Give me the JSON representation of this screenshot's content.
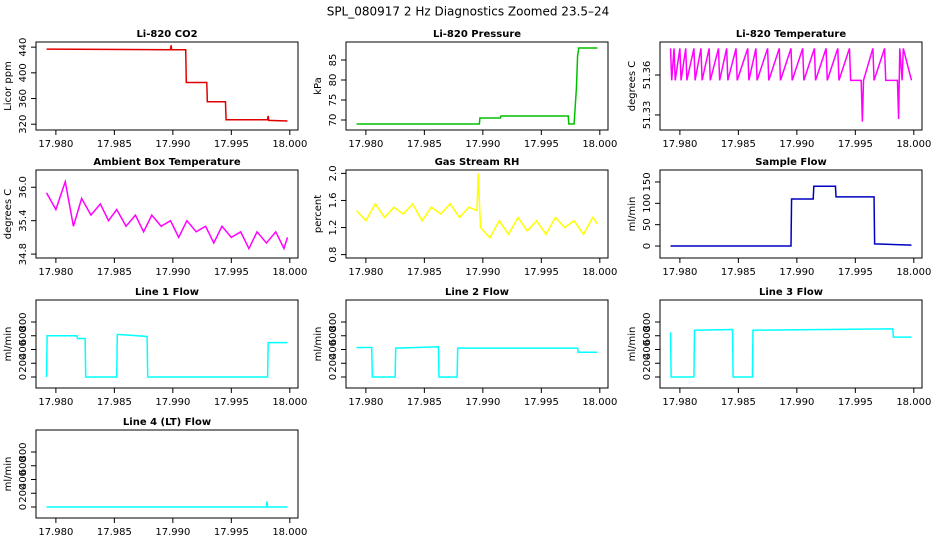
{
  "title": "SPL_080917  2 Hz Diagnostics Zoomed 23.5–24",
  "chart_data": [
    {
      "type": "line",
      "title": "Li-820 CO2",
      "ylabel": "Licor ppm",
      "color": "#e00000",
      "x": [
        17.9792,
        17.9898,
        17.98985,
        17.9899,
        17.9911,
        17.99115,
        17.9929,
        17.99295,
        17.9945,
        17.99455,
        17.9981,
        17.99815,
        17.9982,
        17.9998
      ],
      "values": [
        437,
        436,
        443,
        436,
        436,
        385,
        385,
        355,
        355,
        327,
        327,
        333,
        326,
        325
      ],
      "xlim": [
        17.9783,
        18.0007
      ],
      "ylim": [
        311,
        448
      ],
      "xticks": [
        {
          "value": 17.98,
          "label": "17.980"
        },
        {
          "value": 17.985,
          "label": "17.985"
        },
        {
          "value": 17.99,
          "label": "17.990"
        },
        {
          "value": 17.995,
          "label": "17.995"
        },
        {
          "value": 18.0,
          "label": "18.000"
        }
      ],
      "yticks": [
        320,
        360,
        400,
        440
      ]
    },
    {
      "type": "line",
      "title": "Li-820 Pressure",
      "ylabel": "kPa",
      "color": "#00c000",
      "x": [
        17.9792,
        17.9897,
        17.98975,
        17.9915,
        17.99155,
        17.9973,
        17.99735,
        17.9978,
        17.998,
        17.9981,
        17.9982,
        17.9998
      ],
      "values": [
        69,
        69,
        70.5,
        70.5,
        71,
        71,
        69,
        69,
        78,
        86,
        88,
        88
      ],
      "xlim": [
        17.9783,
        18.0007
      ],
      "ylim": [
        67.5,
        89.5
      ],
      "xticks": [
        {
          "value": 17.98,
          "label": "17.980"
        },
        {
          "value": 17.985,
          "label": "17.985"
        },
        {
          "value": 17.99,
          "label": "17.990"
        },
        {
          "value": 17.995,
          "label": "17.995"
        },
        {
          "value": 18.0,
          "label": "18.000"
        }
      ],
      "yticks": [
        70,
        75,
        80,
        85
      ]
    },
    {
      "type": "line",
      "title": "Li-820 Temperature",
      "ylabel": "degrees C",
      "color": "#ff00ff",
      "x": [
        17.9792,
        17.9793,
        17.9795,
        17.9796,
        17.98,
        17.9801,
        17.9805,
        17.9806,
        17.9812,
        17.9813,
        17.9818,
        17.9819,
        17.9825,
        17.9826,
        17.9833,
        17.9834,
        17.984,
        17.9841,
        17.9848,
        17.9849,
        17.9858,
        17.9859,
        17.9865,
        17.9866,
        17.9875,
        17.9876,
        17.9885,
        17.9886,
        17.9895,
        17.9896,
        17.9905,
        17.9906,
        17.9915,
        17.9916,
        17.9925,
        17.9926,
        17.9935,
        17.9936,
        17.9945,
        17.9946,
        17.9955,
        17.9956,
        17.9957,
        17.9965,
        17.9966,
        17.9975,
        17.9976,
        17.9986,
        17.9987,
        17.9988,
        17.999,
        17.9991,
        17.9998
      ],
      "values": [
        51.38,
        51.356,
        51.38,
        51.356,
        51.38,
        51.356,
        51.38,
        51.356,
        51.38,
        51.356,
        51.38,
        51.356,
        51.38,
        51.356,
        51.38,
        51.356,
        51.38,
        51.356,
        51.38,
        51.356,
        51.38,
        51.356,
        51.38,
        51.356,
        51.38,
        51.356,
        51.38,
        51.356,
        51.38,
        51.356,
        51.38,
        51.356,
        51.38,
        51.356,
        51.38,
        51.356,
        51.38,
        51.356,
        51.38,
        51.356,
        51.356,
        51.325,
        51.356,
        51.38,
        51.356,
        51.38,
        51.356,
        51.356,
        51.327,
        51.38,
        51.356,
        51.38,
        51.356
      ],
      "xlim": [
        17.9783,
        18.0007
      ],
      "ylim": [
        51.3187,
        51.3848
      ],
      "xticks": [
        {
          "value": 17.98,
          "label": "17.980"
        },
        {
          "value": 17.985,
          "label": "17.985"
        },
        {
          "value": 17.99,
          "label": "17.990"
        },
        {
          "value": 17.995,
          "label": "17.995"
        },
        {
          "value": 18.0,
          "label": "18.000"
        }
      ],
      "yticks": [
        51.33,
        51.36
      ]
    },
    {
      "type": "line",
      "title": "Ambient Box Temperature",
      "ylabel": "degrees C",
      "color": "#ff00ff",
      "x": [
        17.9792,
        17.98,
        17.9808,
        17.9815,
        17.9822,
        17.983,
        17.9838,
        17.9845,
        17.9852,
        17.986,
        17.9868,
        17.9875,
        17.9882,
        17.989,
        17.9898,
        17.9905,
        17.9912,
        17.992,
        17.9928,
        17.9935,
        17.9942,
        17.995,
        17.9958,
        17.9965,
        17.9972,
        17.998,
        17.9988,
        17.9995,
        17.9998
      ],
      "values": [
        35.9,
        35.6,
        36.1,
        35.3,
        35.8,
        35.5,
        35.7,
        35.4,
        35.6,
        35.3,
        35.5,
        35.2,
        35.5,
        35.3,
        35.4,
        35.1,
        35.4,
        35.2,
        35.3,
        35.0,
        35.3,
        35.1,
        35.2,
        34.9,
        35.2,
        35.0,
        35.2,
        34.9,
        35.1
      ],
      "xlim": [
        17.9783,
        18.0007
      ],
      "ylim": [
        34.73,
        36.31
      ],
      "xticks": [
        {
          "value": 17.98,
          "label": "17.980"
        },
        {
          "value": 17.985,
          "label": "17.985"
        },
        {
          "value": 17.99,
          "label": "17.990"
        },
        {
          "value": 17.995,
          "label": "17.995"
        },
        {
          "value": 18.0,
          "label": "18.000"
        }
      ],
      "yticks": [
        34.8,
        35.4,
        {
          "value": 36,
          "label": "36.0"
        }
      ]
    },
    {
      "type": "line",
      "title": "Gas Stream RH",
      "ylabel": "percent",
      "color": "#ffff00",
      "x": [
        17.9792,
        17.98,
        17.9808,
        17.9816,
        17.9824,
        17.9832,
        17.984,
        17.9848,
        17.9856,
        17.9864,
        17.9872,
        17.988,
        17.9888,
        17.9895,
        17.9896,
        17.9898,
        17.9906,
        17.9914,
        17.9922,
        17.993,
        17.9938,
        17.9946,
        17.9954,
        17.9962,
        17.997,
        17.9978,
        17.9986,
        17.9994,
        17.9998
      ],
      "values": [
        1.45,
        1.3,
        1.55,
        1.35,
        1.5,
        1.4,
        1.55,
        1.3,
        1.5,
        1.4,
        1.55,
        1.35,
        1.5,
        1.45,
        2.0,
        1.2,
        1.05,
        1.3,
        1.1,
        1.35,
        1.15,
        1.3,
        1.1,
        1.35,
        1.2,
        1.3,
        1.1,
        1.35,
        1.25
      ],
      "xlim": [
        17.9783,
        18.0007
      ],
      "ylim": [
        0.75,
        2.05
      ],
      "xticks": [
        {
          "value": 17.98,
          "label": "17.980"
        },
        {
          "value": 17.985,
          "label": "17.985"
        },
        {
          "value": 17.99,
          "label": "17.990"
        },
        {
          "value": 17.995,
          "label": "17.995"
        },
        {
          "value": 18.0,
          "label": "18.000"
        }
      ],
      "yticks": [
        0.8,
        1.2,
        1.6,
        {
          "value": 2,
          "label": "2.0"
        }
      ]
    },
    {
      "type": "line",
      "title": "Sample Flow",
      "ylabel": "ml/min",
      "color": "#0000c0",
      "x": [
        17.9792,
        17.9895,
        17.98955,
        17.9914,
        17.99145,
        17.9933,
        17.99335,
        17.9966,
        17.99665,
        17.9998
      ],
      "values": [
        0,
        0,
        110,
        110,
        140,
        140,
        115,
        115,
        5,
        2
      ],
      "xlim": [
        17.9783,
        18.0007
      ],
      "ylim": [
        -28,
        178
      ],
      "xticks": [
        {
          "value": 17.98,
          "label": "17.980"
        },
        {
          "value": 17.985,
          "label": "17.985"
        },
        {
          "value": 17.99,
          "label": "17.990"
        },
        {
          "value": 17.995,
          "label": "17.995"
        },
        {
          "value": 18.0,
          "label": "18.000"
        }
      ],
      "yticks": [
        0,
        50,
        100,
        150
      ]
    },
    {
      "type": "line",
      "title": "Line 1 Flow",
      "ylabel": "ml/min",
      "color": "#00ffff",
      "x": [
        17.9792,
        17.97925,
        17.9818,
        17.98185,
        17.9825,
        17.98255,
        17.9852,
        17.98525,
        17.9878,
        17.98785,
        17.9981,
        17.99815,
        17.9998
      ],
      "values": [
        0,
        600,
        600,
        560,
        560,
        0,
        0,
        620,
        590,
        0,
        0,
        500,
        500
      ],
      "xlim": [
        17.9783,
        18.0007
      ],
      "ylim": [
        -160,
        1120
      ],
      "xticks": [
        {
          "value": 17.98,
          "label": "17.980"
        },
        {
          "value": 17.985,
          "label": "17.985"
        },
        {
          "value": 17.99,
          "label": "17.990"
        },
        {
          "value": 17.995,
          "label": "17.995"
        },
        {
          "value": 18.0,
          "label": "18.000"
        }
      ],
      "yticks": [
        0,
        200,
        400,
        600,
        800
      ]
    },
    {
      "type": "line",
      "title": "Line 2 Flow",
      "ylabel": "ml/min",
      "color": "#00ffff",
      "x": [
        17.9792,
        17.9805,
        17.98055,
        17.9825,
        17.98255,
        17.9862,
        17.98625,
        17.9878,
        17.98785,
        17.9981,
        17.99815,
        17.9998
      ],
      "values": [
        430,
        430,
        0,
        0,
        420,
        440,
        0,
        0,
        420,
        420,
        360,
        360
      ],
      "xlim": [
        17.9783,
        18.0007
      ],
      "ylim": [
        -160,
        1120
      ],
      "xticks": [
        {
          "value": 17.98,
          "label": "17.980"
        },
        {
          "value": 17.985,
          "label": "17.985"
        },
        {
          "value": 17.99,
          "label": "17.990"
        },
        {
          "value": 17.995,
          "label": "17.995"
        },
        {
          "value": 18.0,
          "label": "18.000"
        }
      ],
      "yticks": [
        0,
        200,
        400,
        600,
        800
      ]
    },
    {
      "type": "line",
      "title": "Line 3 Flow",
      "ylabel": "ml/min",
      "color": "#00ffff",
      "x": [
        17.9792,
        17.97925,
        17.9793,
        17.9812,
        17.98125,
        17.9845,
        17.98455,
        17.9862,
        17.98625,
        17.9982,
        17.99825,
        17.9998
      ],
      "values": [
        650,
        0,
        0,
        0,
        680,
        690,
        0,
        0,
        680,
        700,
        580,
        580
      ],
      "xlim": [
        17.9783,
        18.0007
      ],
      "ylim": [
        -160,
        1120
      ],
      "xticks": [
        {
          "value": 17.98,
          "label": "17.980"
        },
        {
          "value": 17.985,
          "label": "17.985"
        },
        {
          "value": 17.99,
          "label": "17.990"
        },
        {
          "value": 17.995,
          "label": "17.995"
        },
        {
          "value": 18.0,
          "label": "18.000"
        }
      ],
      "yticks": [
        0,
        200,
        400,
        600,
        800
      ]
    },
    {
      "type": "line",
      "title": "Line 4 (LT) Flow",
      "ylabel": "ml/min",
      "color": "#00ffff",
      "x": [
        17.9792,
        17.998,
        17.99805,
        17.9981,
        17.9998
      ],
      "values": [
        0,
        0,
        80,
        0,
        0
      ],
      "xlim": [
        17.9783,
        18.0007
      ],
      "ylim": [
        -160,
        1120
      ],
      "xticks": [
        {
          "value": 17.98,
          "label": "17.980"
        },
        {
          "value": 17.985,
          "label": "17.985"
        },
        {
          "value": 17.99,
          "label": "17.990"
        },
        {
          "value": 17.995,
          "label": "17.995"
        },
        {
          "value": 18.0,
          "label": "18.000"
        }
      ],
      "yticks": [
        0,
        200,
        400,
        600,
        800
      ]
    }
  ]
}
